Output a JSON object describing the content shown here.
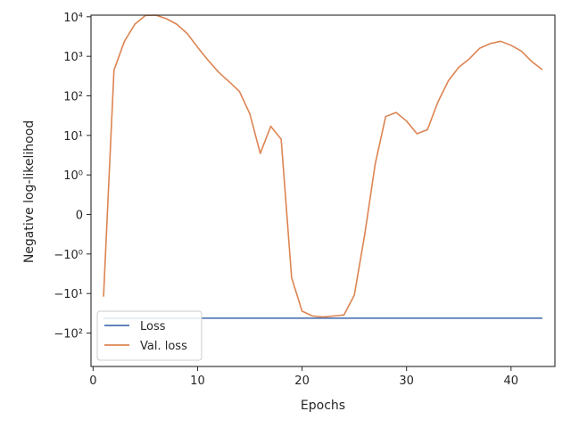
{
  "chart_data": {
    "type": "line",
    "xlabel": "Epochs",
    "ylabel": "Negative log-likelihood",
    "xlim": [
      -0.2,
      44.2
    ],
    "yscale": "symlog",
    "symlog_linthresh": 1,
    "ylim": [
      -700,
      11000
    ],
    "grid": false,
    "legend_position": "lower-left",
    "x_ticks": [
      {
        "value": 0,
        "label": "0"
      },
      {
        "value": 10,
        "label": "10"
      },
      {
        "value": 20,
        "label": "20"
      },
      {
        "value": 30,
        "label": "30"
      },
      {
        "value": 40,
        "label": "40"
      }
    ],
    "y_ticks": [
      {
        "value": 10000,
        "label": "10⁴"
      },
      {
        "value": 1000,
        "label": "10³"
      },
      {
        "value": 100,
        "label": "10²"
      },
      {
        "value": 10,
        "label": "10¹"
      },
      {
        "value": 1,
        "label": "10⁰"
      },
      {
        "value": 0,
        "label": "0"
      },
      {
        "value": -1,
        "label": "−10⁰"
      },
      {
        "value": -10,
        "label": "−10¹"
      },
      {
        "value": -100,
        "label": "−10²"
      }
    ],
    "series": [
      {
        "name": "Loss",
        "color": "#4c72b0",
        "x": [
          1,
          43
        ],
        "y": [
          -42,
          -42
        ]
      },
      {
        "name": "Val. loss",
        "color": "#dd8452",
        "x": [
          1,
          2,
          3,
          4,
          5,
          6,
          7,
          8,
          9,
          10,
          11,
          12,
          13,
          14,
          15,
          16,
          17,
          18,
          19,
          20,
          21,
          22,
          23,
          24,
          25,
          26,
          27,
          28,
          29,
          30,
          31,
          32,
          33,
          34,
          35,
          36,
          37,
          38,
          39,
          40,
          41,
          42,
          43
        ],
        "y": [
          -12,
          450,
          2400,
          6500,
          10800,
          11000,
          9000,
          6500,
          3800,
          1700,
          800,
          400,
          230,
          130,
          35,
          3.5,
          17,
          8,
          -4,
          -28,
          -37,
          -39,
          -37,
          -35,
          -11,
          -0.5,
          1.9,
          30,
          38,
          23,
          11,
          14,
          70,
          240,
          530,
          860,
          1600,
          2100,
          2400,
          1900,
          1350,
          730,
          460
        ]
      }
    ]
  }
}
